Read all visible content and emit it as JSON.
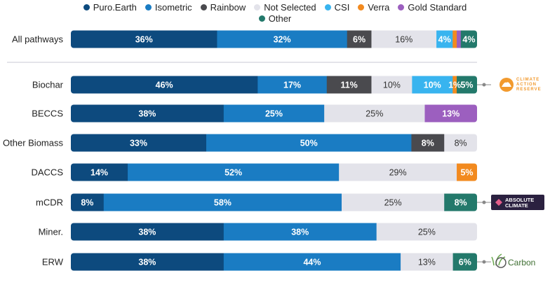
{
  "chart_data": {
    "type": "bar",
    "orientation": "horizontal",
    "stacked": true,
    "normalized_percent": true,
    "legend": [
      {
        "name": "Puro.Earth",
        "color": "#0d4a7e"
      },
      {
        "name": "Isometric",
        "color": "#1a7cc3"
      },
      {
        "name": "Rainbow",
        "color": "#4a4a4e"
      },
      {
        "name": "Not Selected",
        "color": "#e3e3ea"
      },
      {
        "name": "CSI",
        "color": "#38b4ef"
      },
      {
        "name": "Verra",
        "color": "#f28a1f"
      },
      {
        "name": "Gold Standard",
        "color": "#9c5fbf"
      },
      {
        "name": "Other",
        "color": "#23796b"
      }
    ],
    "categories": [
      "All pathways",
      "Biochar",
      "BECCS",
      "Other Biomass",
      "DACCS",
      "mCDR",
      "Miner.",
      "ERW"
    ],
    "rows": [
      {
        "category": "All pathways",
        "segments": [
          {
            "series": "Puro.Earth",
            "value": 36,
            "label": "36%"
          },
          {
            "series": "Isometric",
            "value": 32,
            "label": "32%"
          },
          {
            "series": "Rainbow",
            "value": 6,
            "label": "6%"
          },
          {
            "series": "Not Selected",
            "value": 16,
            "label": "16%"
          },
          {
            "series": "CSI",
            "value": 4,
            "label": "4%"
          },
          {
            "series": "Verra",
            "value": 1,
            "label": ""
          },
          {
            "series": "Gold Standard",
            "value": 1,
            "label": ""
          },
          {
            "series": "Other",
            "value": 4,
            "label": "4%"
          }
        ]
      },
      {
        "category": "Biochar",
        "segments": [
          {
            "series": "Puro.Earth",
            "value": 46,
            "label": "46%"
          },
          {
            "series": "Isometric",
            "value": 17,
            "label": "17%"
          },
          {
            "series": "Rainbow",
            "value": 11,
            "label": "11%"
          },
          {
            "series": "Not Selected",
            "value": 10,
            "label": "10%"
          },
          {
            "series": "CSI",
            "value": 10,
            "label": "10%"
          },
          {
            "series": "Verra",
            "value": 1,
            "label": "1%"
          },
          {
            "series": "Other",
            "value": 5,
            "label": "5%"
          }
        ]
      },
      {
        "category": "BECCS",
        "segments": [
          {
            "series": "Puro.Earth",
            "value": 38,
            "label": "38%"
          },
          {
            "series": "Isometric",
            "value": 25,
            "label": "25%"
          },
          {
            "series": "Not Selected",
            "value": 25,
            "label": "25%"
          },
          {
            "series": "Gold Standard",
            "value": 13,
            "label": "13%"
          }
        ]
      },
      {
        "category": "Other Biomass",
        "segments": [
          {
            "series": "Puro.Earth",
            "value": 33,
            "label": "33%"
          },
          {
            "series": "Isometric",
            "value": 50,
            "label": "50%"
          },
          {
            "series": "Rainbow",
            "value": 8,
            "label": "8%"
          },
          {
            "series": "Not Selected",
            "value": 8,
            "label": "8%"
          }
        ]
      },
      {
        "category": "DACCS",
        "segments": [
          {
            "series": "Puro.Earth",
            "value": 14,
            "label": "14%"
          },
          {
            "series": "Isometric",
            "value": 52,
            "label": "52%"
          },
          {
            "series": "Not Selected",
            "value": 29,
            "label": "29%"
          },
          {
            "series": "Verra",
            "value": 5,
            "label": "5%"
          }
        ]
      },
      {
        "category": "mCDR",
        "segments": [
          {
            "series": "Puro.Earth",
            "value": 8,
            "label": "8%"
          },
          {
            "series": "Isometric",
            "value": 58,
            "label": "58%"
          },
          {
            "series": "Not Selected",
            "value": 25,
            "label": "25%"
          },
          {
            "series": "Other",
            "value": 8,
            "label": "8%"
          }
        ]
      },
      {
        "category": "Miner.",
        "segments": [
          {
            "series": "Puro.Earth",
            "value": 38,
            "label": "38%"
          },
          {
            "series": "Isometric",
            "value": 38,
            "label": "38%"
          },
          {
            "series": "Not Selected",
            "value": 25,
            "label": "25%"
          }
        ]
      },
      {
        "category": "ERW",
        "segments": [
          {
            "series": "Puro.Earth",
            "value": 38,
            "label": "38%"
          },
          {
            "series": "Isometric",
            "value": 44,
            "label": "44%"
          },
          {
            "series": "Not Selected",
            "value": 13,
            "label": "13%"
          },
          {
            "series": "Other",
            "value": 6,
            "label": "6%"
          }
        ]
      }
    ],
    "callouts": [
      {
        "category": "Biochar",
        "logo_lines": [
          "CLIMATE",
          "ACTION",
          "RESERVE"
        ]
      },
      {
        "category": "mCDR",
        "logo_lines": [
          "ABSOLUTE",
          "CLIMATE"
        ]
      },
      {
        "category": "ERW",
        "logo_lines": [
          "Carbon"
        ]
      }
    ]
  }
}
